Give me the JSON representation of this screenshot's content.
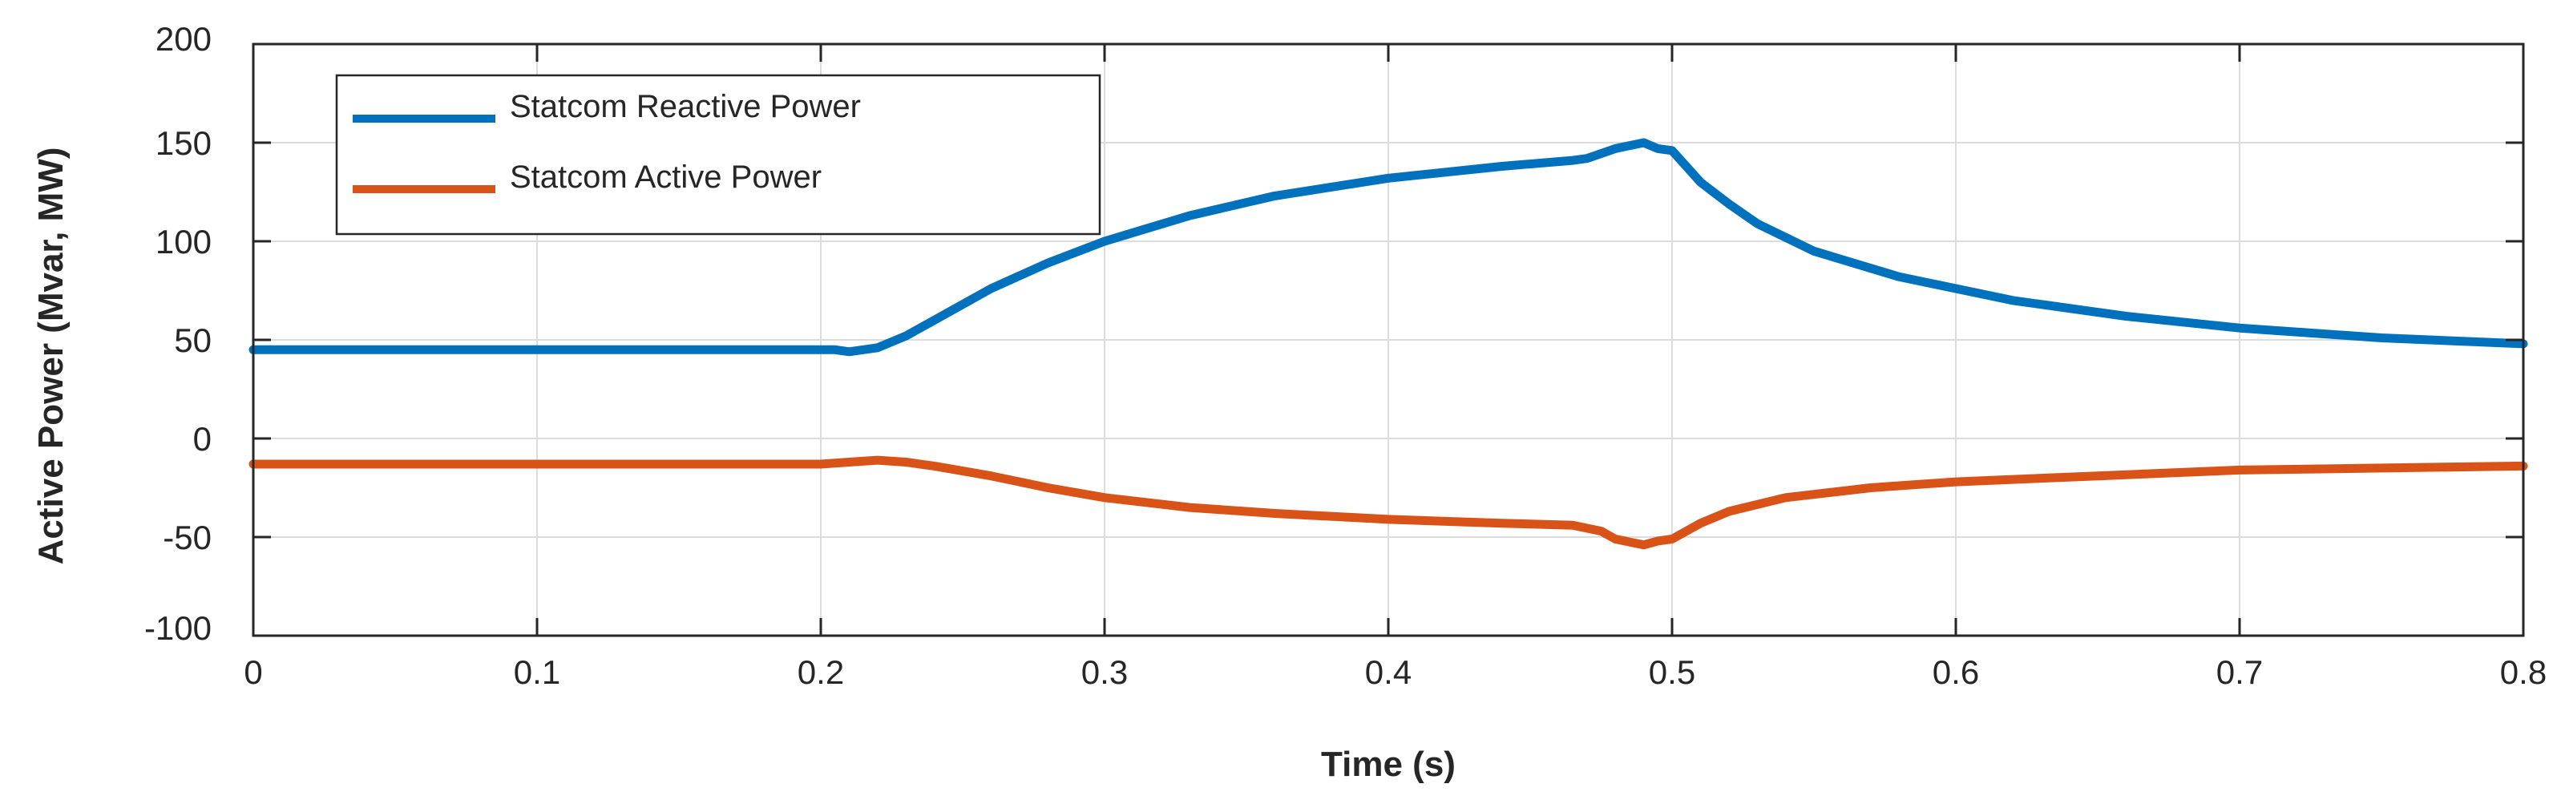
{
  "chart_data": {
    "type": "line",
    "title": "",
    "xlabel": "Time (s)",
    "ylabel": "Active Power (Mvar, MW)",
    "xlim": [
      0,
      0.8
    ],
    "ylim": [
      -100,
      200
    ],
    "xticks": [
      "0",
      "0.1",
      "0.2",
      "0.3",
      "0.4",
      "0.5",
      "0.6",
      "0.7",
      "0.8"
    ],
    "yticks": [
      "200",
      "150",
      "100",
      "50",
      "0",
      "-50",
      "-100"
    ],
    "grid": true,
    "legend_position": "top-left",
    "series": [
      {
        "name": "Statcom Reactive Power",
        "color": "#0072BD",
        "x": [
          0,
          0.1,
          0.2,
          0.205,
          0.21,
          0.22,
          0.23,
          0.24,
          0.26,
          0.28,
          0.3,
          0.33,
          0.36,
          0.4,
          0.44,
          0.465,
          0.47,
          0.48,
          0.49,
          0.495,
          0.5,
          0.51,
          0.52,
          0.53,
          0.55,
          0.58,
          0.62,
          0.66,
          0.7,
          0.75,
          0.8
        ],
        "y": [
          45,
          45,
          45,
          45,
          44,
          46,
          52,
          60,
          76,
          89,
          100,
          113,
          123,
          132,
          138,
          141,
          142,
          147,
          150,
          147,
          146,
          130,
          119,
          109,
          95,
          82,
          70,
          62,
          56,
          51,
          48
        ]
      },
      {
        "name": "Statcom Active Power",
        "color": "#D95319",
        "x": [
          0,
          0.1,
          0.2,
          0.21,
          0.22,
          0.23,
          0.24,
          0.26,
          0.28,
          0.3,
          0.33,
          0.36,
          0.4,
          0.44,
          0.465,
          0.475,
          0.48,
          0.49,
          0.495,
          0.5,
          0.51,
          0.52,
          0.54,
          0.57,
          0.6,
          0.65,
          0.7,
          0.75,
          0.8
        ],
        "y": [
          -13,
          -13,
          -13,
          -12,
          -11,
          -12,
          -14,
          -19,
          -25,
          -30,
          -35,
          -38,
          -41,
          -43,
          -44,
          -47,
          -51,
          -54,
          -52,
          -51,
          -43,
          -37,
          -30,
          -25,
          -22,
          -19,
          -16,
          -15,
          -14
        ]
      }
    ]
  }
}
